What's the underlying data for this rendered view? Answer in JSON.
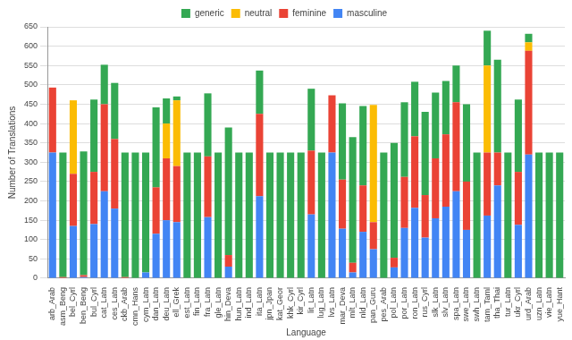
{
  "chart_data": {
    "type": "bar",
    "stacked": true,
    "grid": true,
    "legend": "top",
    "x_label": "Language",
    "y_label": "Number of Translations",
    "categories": [
      "arb_Arab",
      "asm_Beng",
      "bel_Cyrl",
      "ben_Beng",
      "bul_Cyrl",
      "cat_Latn",
      "ces_Latn",
      "ckb_Arab",
      "cmn_Hans",
      "cym_Latn",
      "dan_Latn",
      "deu_Latn",
      "ell_Grek",
      "est_Latn",
      "fin_Latn",
      "fra_Latn",
      "gle_Latn",
      "hin_Deva",
      "hun_Latn",
      "ind_Latn",
      "ita_Latn",
      "jpn_Jpan",
      "kat_Geor",
      "khk_Cyrl",
      "kir_Cyrl",
      "lit_Latn",
      "lug_Latn",
      "lvs_Latn",
      "mar_Deva",
      "mlt_Latn",
      "nld_Latn",
      "pan_Guru",
      "pes_Arab",
      "pol_Latn",
      "por_Latn",
      "ron_Latn",
      "rus_Cyrl",
      "slk_Latn",
      "slv_Latn",
      "spa_Latn",
      "swe_Latn",
      "swh_Latn",
      "tam_Taml",
      "tha_Thai",
      "tur_Latn",
      "ukr_Cyrl",
      "urd_Arab",
      "uzn_Latn",
      "vie_Latn",
      "yue_Hant"
    ],
    "series": [
      {
        "name": "masculine",
        "color": "#4285f4",
        "values": [
          325,
          0,
          135,
          3,
          140,
          225,
          180,
          0,
          0,
          15,
          115,
          150,
          145,
          0,
          0,
          158,
          0,
          30,
          0,
          0,
          212,
          0,
          0,
          0,
          0,
          165,
          0,
          325,
          128,
          15,
          120,
          75,
          0,
          28,
          130,
          182,
          105,
          155,
          185,
          225,
          125,
          0,
          162,
          240,
          0,
          138,
          320,
          0,
          0,
          0
        ]
      },
      {
        "name": "feminine",
        "color": "#ea4335",
        "values": [
          168,
          3,
          135,
          5,
          135,
          225,
          180,
          3,
          0,
          0,
          120,
          160,
          145,
          0,
          0,
          157,
          0,
          30,
          0,
          0,
          213,
          0,
          0,
          0,
          0,
          165,
          0,
          148,
          127,
          25,
          120,
          70,
          0,
          25,
          132,
          185,
          110,
          155,
          187,
          230,
          125,
          0,
          163,
          85,
          0,
          137,
          268,
          0,
          0,
          0
        ]
      },
      {
        "name": "neutral",
        "color": "#fbbc04",
        "values": [
          0,
          0,
          190,
          0,
          0,
          0,
          0,
          0,
          0,
          0,
          0,
          90,
          170,
          0,
          0,
          0,
          0,
          0,
          0,
          0,
          0,
          0,
          0,
          0,
          0,
          0,
          0,
          0,
          0,
          0,
          0,
          303,
          0,
          0,
          0,
          0,
          0,
          0,
          0,
          0,
          0,
          0,
          225,
          0,
          0,
          0,
          22,
          0,
          0,
          0
        ]
      },
      {
        "name": "generic",
        "color": "#34a853",
        "values": [
          0,
          322,
          0,
          320,
          187,
          102,
          145,
          322,
          325,
          310,
          207,
          65,
          10,
          325,
          325,
          163,
          325,
          330,
          325,
          325,
          112,
          325,
          325,
          325,
          325,
          160,
          325,
          0,
          197,
          325,
          205,
          0,
          325,
          297,
          193,
          141,
          215,
          170,
          138,
          95,
          200,
          325,
          90,
          240,
          325,
          187,
          22,
          325,
          325,
          325
        ]
      }
    ],
    "ylim": [
      0,
      650
    ],
    "yticks": [
      0,
      50,
      100,
      150,
      200,
      250,
      300,
      350,
      400,
      450,
      500,
      550,
      600,
      650
    ]
  }
}
